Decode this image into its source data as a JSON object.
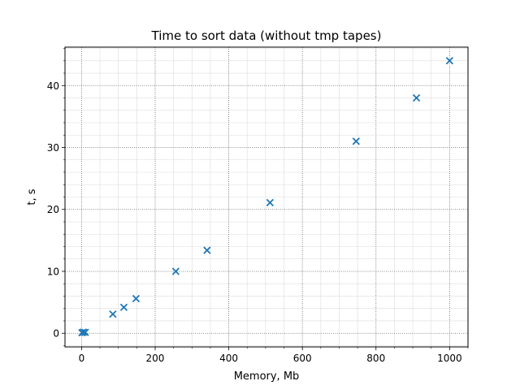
{
  "chart_data": {
    "type": "scatter",
    "title": "Time to sort data (without tmp tapes)",
    "xlabel": "Memory, Mb",
    "ylabel": "t, s",
    "xlim": [
      -45,
      1050
    ],
    "ylim": [
      -2.2,
      46.2
    ],
    "xticks": [
      0,
      200,
      400,
      600,
      800,
      1000
    ],
    "yticks": [
      0,
      10,
      20,
      30,
      40
    ],
    "xminor_step": 50,
    "yminor_step": 2,
    "grid": {
      "major": true,
      "minor": true,
      "major_style": "dotted",
      "minor_style": "solid-light"
    },
    "marker": "x",
    "marker_color": "#1f77b4",
    "series": [
      {
        "x": [
          1,
          5,
          10,
          85,
          115,
          148,
          256,
          341,
          512,
          746,
          910,
          1000
        ],
        "y": [
          0.1,
          0.2,
          0.15,
          3.1,
          4.2,
          5.6,
          10.0,
          13.4,
          21.1,
          31.0,
          38.0,
          44.0
        ]
      }
    ]
  }
}
